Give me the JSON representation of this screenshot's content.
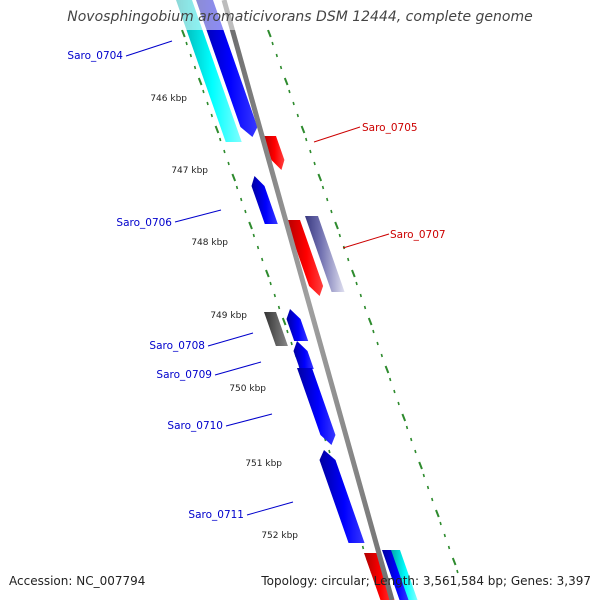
{
  "title": "Novosphingobium aromaticivorans DSM 12444, complete genome",
  "footer": {
    "accession": "Accession: NC_007794",
    "stats": "Topology: circular; Length: 3,561,584 bp; Genes: 3,397"
  },
  "colors": {
    "backbone": "#808080",
    "tick": "#2e8b2e",
    "forward_gene": "#0000ff",
    "reverse_gene": "#ff0000",
    "highlight_gene": "#00ffff",
    "pseudo_gene": "#555555",
    "purple_gene": "#5a5aa8",
    "label_forward": "#0000cc",
    "label_reverse": "#cc0000"
  },
  "ruler": {
    "kbp_labels": [
      "746 kbp",
      "747 kbp",
      "748 kbp",
      "749 kbp",
      "750 kbp",
      "751 kbp",
      "752 kbp"
    ]
  },
  "genes": [
    {
      "id": "Saro_0704",
      "strand": "forward"
    },
    {
      "id": "Saro_0705",
      "strand": "reverse"
    },
    {
      "id": "Saro_0706",
      "strand": "forward"
    },
    {
      "id": "Saro_0707",
      "strand": "reverse"
    },
    {
      "id": "Saro_0708",
      "strand": "forward"
    },
    {
      "id": "Saro_0709",
      "strand": "forward"
    },
    {
      "id": "Saro_0710",
      "strand": "forward"
    },
    {
      "id": "Saro_0711",
      "strand": "forward"
    }
  ]
}
